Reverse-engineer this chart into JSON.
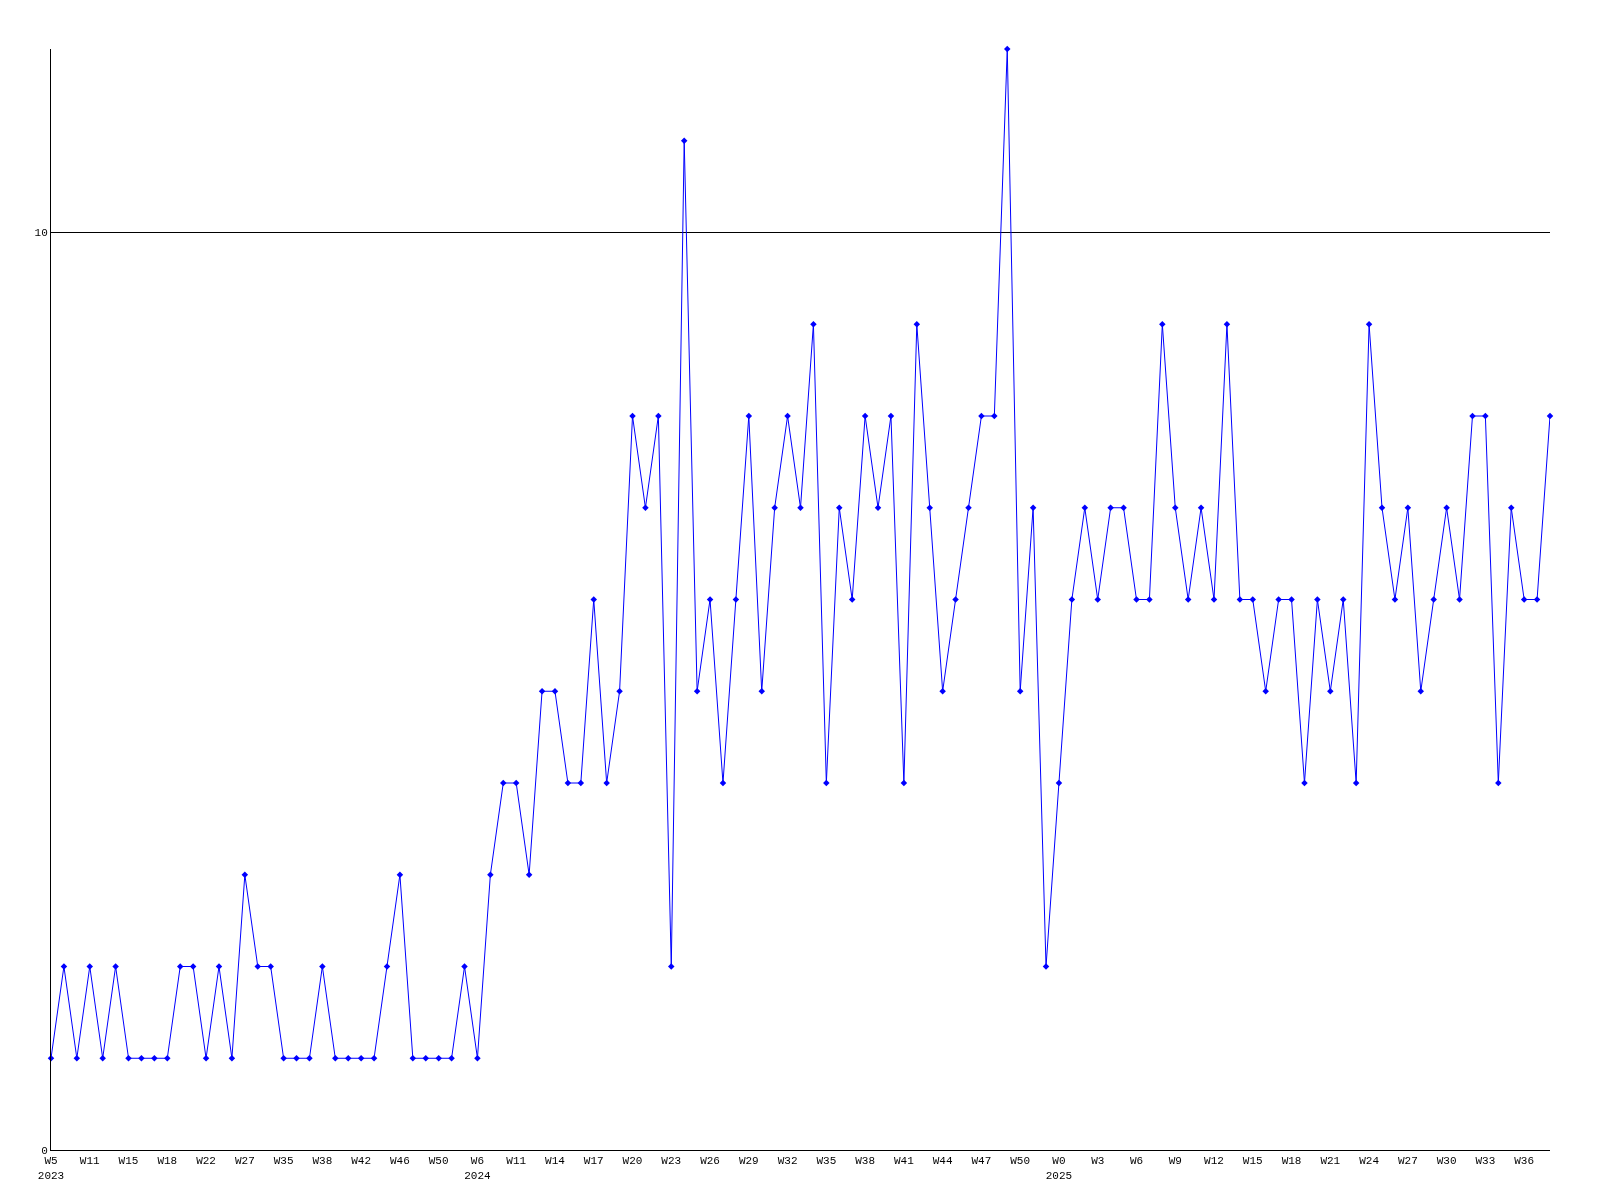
{
  "chart_data": {
    "type": "line",
    "categories": [
      "W5\n2023",
      null,
      null,
      "W11",
      null,
      null,
      "W15",
      null,
      null,
      "W18",
      null,
      null,
      "W22",
      null,
      null,
      "W27",
      null,
      null,
      "W35",
      null,
      null,
      "W38",
      null,
      null,
      "W42",
      null,
      null,
      "W46",
      null,
      null,
      "W50",
      null,
      null,
      "W6\n2024",
      null,
      null,
      "W11",
      null,
      null,
      "W14",
      null,
      null,
      "W17",
      null,
      null,
      "W20",
      null,
      null,
      "W23",
      null,
      null,
      "W26",
      null,
      null,
      "W29",
      null,
      null,
      "W32",
      null,
      null,
      "W35",
      null,
      null,
      "W38",
      null,
      null,
      "W41",
      null,
      null,
      "W44",
      null,
      null,
      "W47",
      null,
      null,
      "W50",
      null,
      null,
      "W0\n2025",
      null,
      null,
      "W3",
      null,
      null,
      "W6",
      null,
      null,
      "W9",
      null,
      null,
      "W12",
      null,
      null,
      "W15",
      null,
      null,
      "W18",
      null,
      null,
      "W21",
      null,
      null,
      "W24",
      null,
      null,
      "W27",
      null,
      null,
      "W30",
      null,
      null,
      "W33",
      null,
      null,
      "W36",
      null,
      null
    ],
    "series": [
      {
        "color": "#0000ff",
        "values": [
          1,
          2,
          1,
          2,
          1,
          2,
          1,
          1,
          1,
          1,
          2,
          2,
          1,
          2,
          1,
          3,
          2,
          2,
          1,
          1,
          1,
          2,
          1,
          1,
          1,
          1,
          2,
          3,
          1,
          1,
          1,
          1,
          2,
          1,
          3,
          4,
          4,
          3,
          5,
          5,
          4,
          4,
          6,
          4,
          5,
          8,
          7,
          8,
          2,
          11,
          5,
          6,
          4,
          6,
          8,
          5,
          7,
          8,
          7,
          9,
          4,
          7,
          6,
          8,
          7,
          8,
          4,
          9,
          7,
          5,
          6,
          7,
          8,
          8,
          12,
          5,
          7,
          2,
          4,
          6,
          7,
          6,
          7,
          7,
          6,
          6,
          9,
          7,
          6,
          7,
          6,
          9,
          6,
          6,
          5,
          6,
          6,
          4,
          6,
          5,
          6,
          4,
          9,
          7,
          6,
          7,
          5,
          6,
          7,
          6,
          8,
          8,
          4,
          7,
          6,
          6,
          8
        ]
      }
    ],
    "ylim": [
      0,
      12
    ],
    "yticks": [
      0,
      10
    ],
    "ref_lines": [
      {
        "axis": "y",
        "value": 10,
        "color": "#000000"
      }
    ],
    "marker": "diamond",
    "line_style": "solid",
    "grid": false
  }
}
